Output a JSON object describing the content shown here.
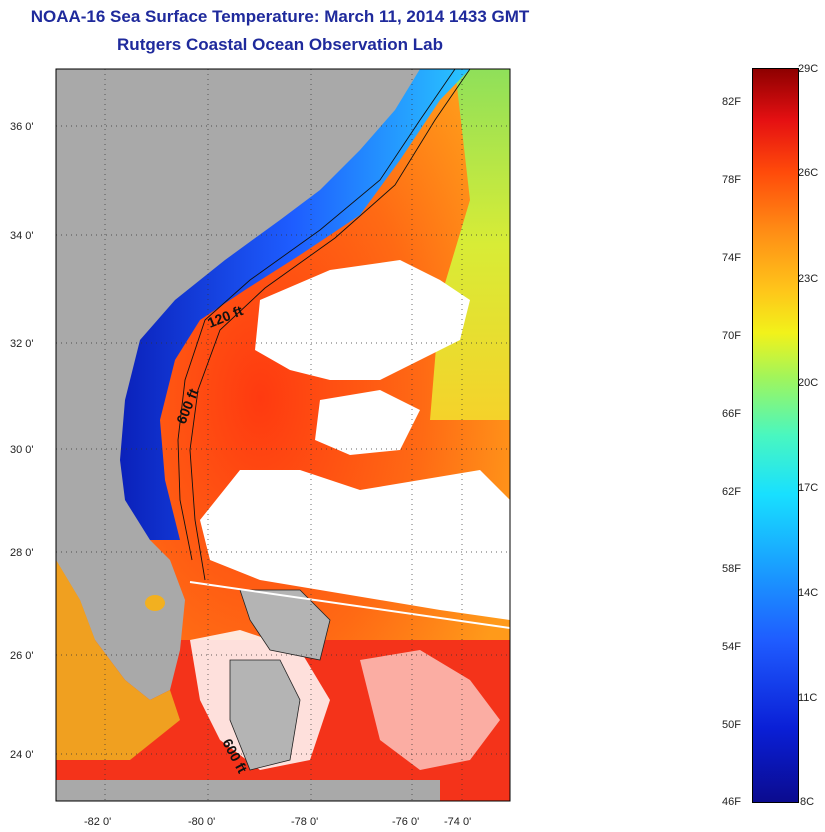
{
  "header": {
    "title": "NOAA-16 Sea Surface Temperature:  March 11, 2014 1433 GMT",
    "subtitle": "Rutgers Coastal Ocean Observation Lab"
  },
  "map": {
    "region": "US Southeast Atlantic coast",
    "latitude_ticks": [
      "24 0'",
      "26 0'",
      "28 0'",
      "30 0'",
      "32 0'",
      "34 0'",
      "36 0'"
    ],
    "longitude_ticks": [
      "-82 0'",
      "-80 0'",
      "-78 0'",
      "-76 0'",
      "-74 0'"
    ],
    "contour_labels": [
      "120 ft",
      "600 ft",
      "600 ft"
    ],
    "colors": {
      "land": "#a9a9a9",
      "cloud": "#ffffff",
      "shelf_cold": "#1c3fe8",
      "gulf_stream": "#ff5a12"
    }
  },
  "colorbar": {
    "fahrenheit": [
      "82F",
      "78F",
      "74F",
      "70F",
      "66F",
      "62F",
      "58F",
      "54F",
      "50F",
      "46F"
    ],
    "celsius": [
      "29C",
      "26C",
      "23C",
      "20C",
      "17C",
      "14C",
      "11C",
      "8C"
    ]
  }
}
